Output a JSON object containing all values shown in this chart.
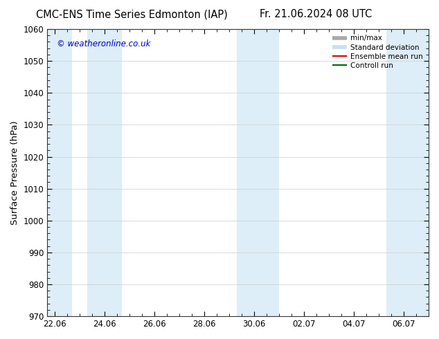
{
  "title_left": "CMC-ENS Time Series Edmonton (IAP)",
  "title_right": "Fr. 21.06.2024 08 UTC",
  "ylabel": "Surface Pressure (hPa)",
  "ylim": [
    970,
    1060
  ],
  "yticks": [
    970,
    980,
    990,
    1000,
    1010,
    1020,
    1030,
    1040,
    1050,
    1060
  ],
  "xtick_labels": [
    "22.06",
    "24.06",
    "26.06",
    "28.06",
    "30.06",
    "02.07",
    "04.07",
    "06.07"
  ],
  "xtick_positions": [
    0,
    2,
    4,
    6,
    8,
    10,
    12,
    14
  ],
  "xlim": [
    -0.3,
    15.0
  ],
  "shaded_bands": [
    {
      "x_start": -0.3,
      "x_end": 0.7,
      "color": "#ddeef8"
    },
    {
      "x_start": 1.3,
      "x_end": 2.7,
      "color": "#ddeef8"
    },
    {
      "x_start": 7.3,
      "x_end": 9.0,
      "color": "#ddeef8"
    },
    {
      "x_start": 13.3,
      "x_end": 15.0,
      "color": "#ddeef8"
    }
  ],
  "watermark": "© weatheronline.co.uk",
  "watermark_color": "#0000cc",
  "legend_items": [
    {
      "label": "min/max",
      "color": "#aaaaaa",
      "lw": 4,
      "type": "line"
    },
    {
      "label": "Standard deviation",
      "color": "#c8dff0",
      "lw": 4,
      "type": "line"
    },
    {
      "label": "Ensemble mean run",
      "color": "#dd0000",
      "lw": 1.5,
      "type": "line"
    },
    {
      "label": "Controll run",
      "color": "#006600",
      "lw": 1.5,
      "type": "line"
    }
  ],
  "background_color": "#ffffff",
  "plot_bg_color": "#ffffff",
  "title_fontsize": 10.5,
  "tick_fontsize": 8.5,
  "ylabel_fontsize": 9.5,
  "watermark_fontsize": 8.5
}
